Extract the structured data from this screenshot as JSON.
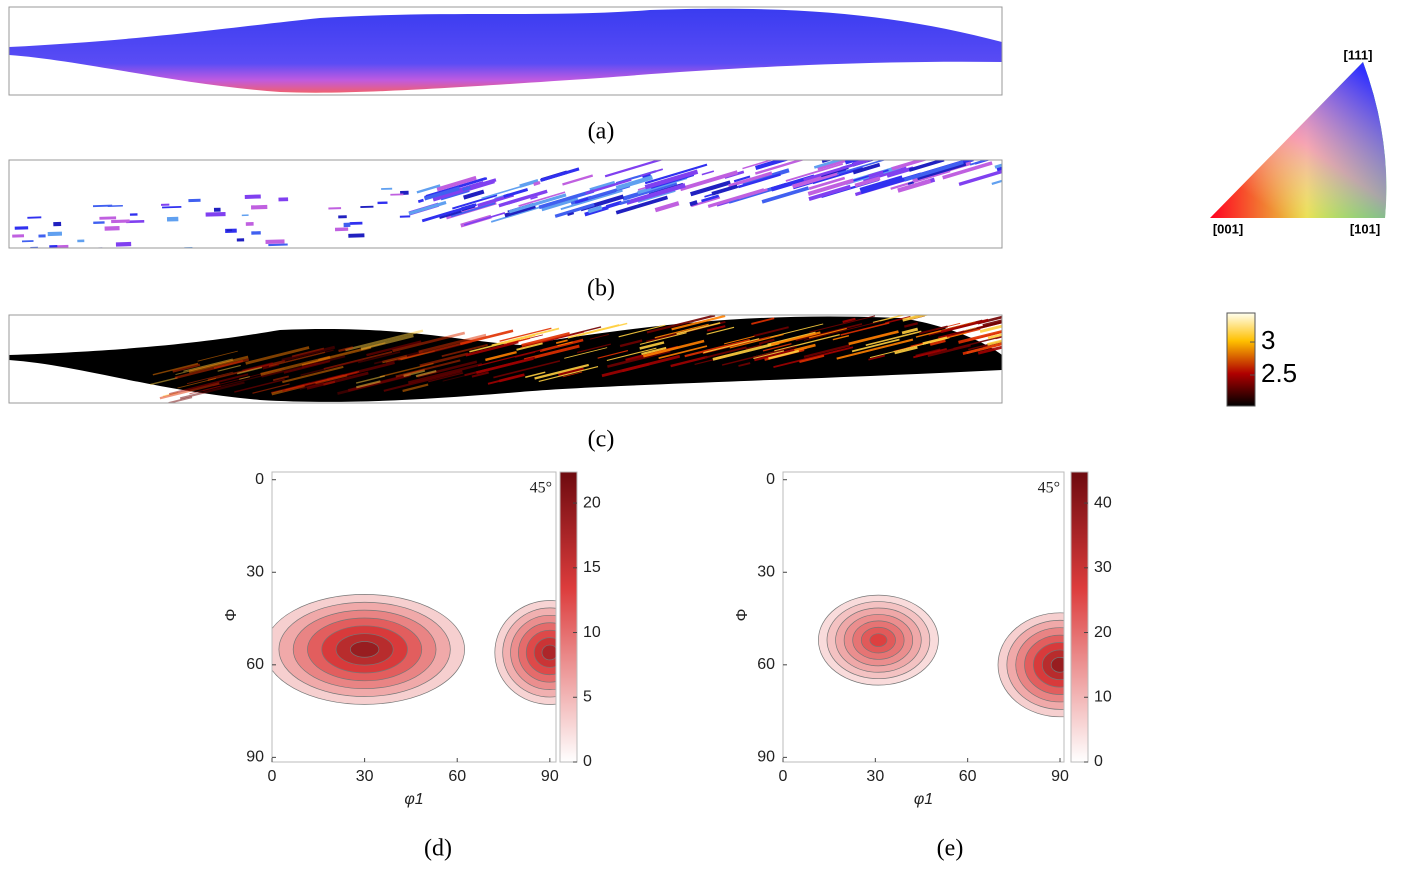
{
  "maps": [
    {
      "caption": "(a)"
    },
    {
      "caption": "(b)"
    },
    {
      "caption": "(c)"
    }
  ],
  "ipf_key": {
    "labels": [
      "[111]",
      "[001]",
      "[101]"
    ]
  },
  "kam_colorbar": {
    "lim": [
      2.03,
      3.44
    ],
    "ticks": [
      3,
      2.5
    ]
  },
  "odf_plots": [
    {
      "caption": "(d)",
      "xlabel": "φ1",
      "ylabel": "Φ",
      "annotation": "45°",
      "xlim": [
        0,
        92
      ],
      "xticks": [
        0,
        30,
        60,
        90
      ],
      "ylim": [
        -2.5,
        91.5
      ],
      "y_direction": "reverse",
      "yticks": [
        0,
        30,
        60,
        90
      ],
      "colorbar": {
        "lim": [
          0,
          22.4
        ],
        "ticks": [
          0,
          5,
          10,
          15,
          20
        ]
      },
      "peaks": [
        {
          "phi1": 30,
          "Phi": 55,
          "value": 22
        },
        {
          "phi1": 90,
          "Phi": 56,
          "value": 20
        }
      ]
    },
    {
      "caption": "(e)",
      "xlabel": "φ1",
      "ylabel": "Φ",
      "annotation": "45°",
      "xlim": [
        0,
        91.3
      ],
      "xticks": [
        0,
        30,
        60,
        90
      ],
      "ylim": [
        -2.5,
        91.5
      ],
      "y_direction": "reverse",
      "yticks": [
        0,
        30,
        60,
        90
      ],
      "colorbar": {
        "lim": [
          0,
          44.8
        ],
        "ticks": [
          0,
          10,
          20,
          30,
          40
        ]
      },
      "peaks": [
        {
          "phi1": 31,
          "Phi": 52,
          "value": 30
        },
        {
          "phi1": 90,
          "Phi": 60,
          "value": 44
        }
      ]
    }
  ]
}
